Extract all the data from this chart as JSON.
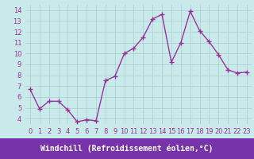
{
  "x": [
    0,
    1,
    2,
    3,
    4,
    5,
    6,
    7,
    8,
    9,
    10,
    11,
    12,
    13,
    14,
    15,
    16,
    17,
    18,
    19,
    20,
    21,
    22,
    23
  ],
  "y": [
    6.7,
    4.9,
    5.6,
    5.6,
    4.8,
    3.7,
    3.9,
    3.8,
    7.5,
    7.9,
    10.0,
    10.5,
    11.5,
    13.2,
    13.6,
    9.2,
    11.0,
    13.9,
    12.1,
    11.1,
    9.9,
    8.5,
    8.2,
    8.3
  ],
  "line_color": "#993399",
  "marker": "+",
  "markersize": 4,
  "linewidth": 1.0,
  "xlabel": "Windchill (Refroidissement éolien,°C)",
  "xlabel_fontsize": 7,
  "xlim": [
    -0.5,
    23.5
  ],
  "ylim": [
    3.5,
    14.5
  ],
  "yticks": [
    4,
    5,
    6,
    7,
    8,
    9,
    10,
    11,
    12,
    13,
    14
  ],
  "xticks": [
    0,
    1,
    2,
    3,
    4,
    5,
    6,
    7,
    8,
    9,
    10,
    11,
    12,
    13,
    14,
    15,
    16,
    17,
    18,
    19,
    20,
    21,
    22,
    23
  ],
  "bg_color": "#c8eaea",
  "grid_color": "#aacccc",
  "tick_fontsize": 6,
  "xlabel_bg": "#7733aa",
  "xlabel_fg": "#ffffff"
}
